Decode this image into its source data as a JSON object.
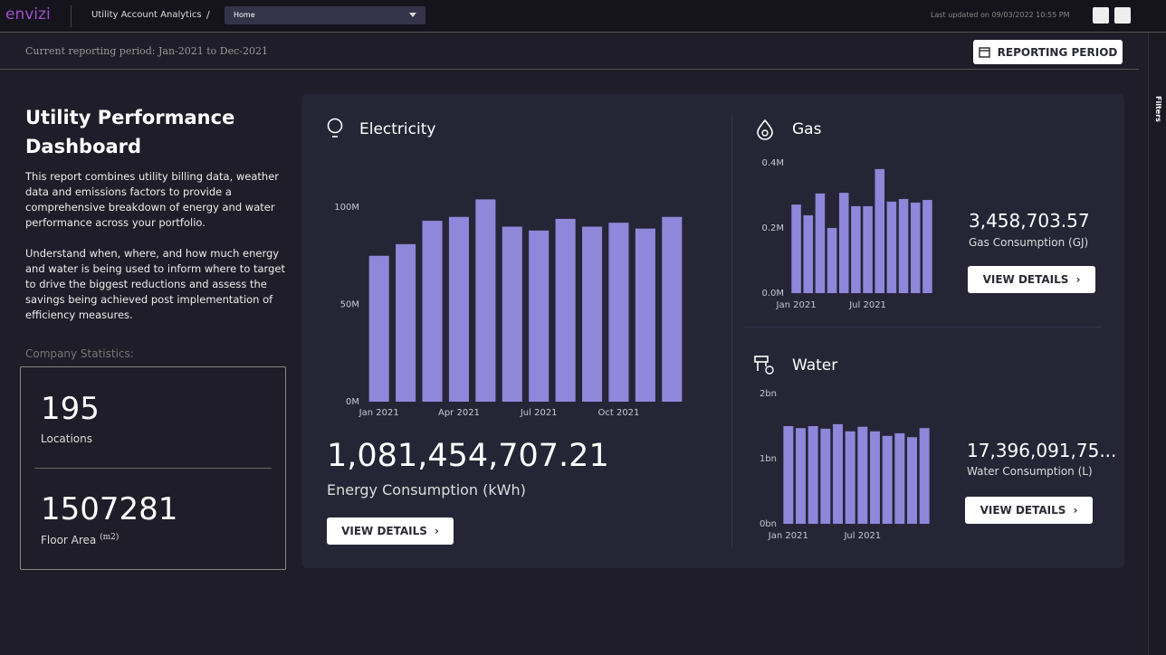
{
  "header": {
    "logo": "envizi",
    "breadcrumb": "Utility Account Analytics",
    "separator": "/",
    "dropdown": "Home",
    "last_updated": "Last updated on 09/03/2022 10:55 PM"
  },
  "toolbar": {
    "period": "Current reporting period: Jan-2021 to Dec-2021",
    "button": "REPORTING PERIOD"
  },
  "sidebar": {
    "label": "Filters"
  },
  "intro": {
    "title": "Utility Performance Dashboard",
    "paragraphs": [
      "This report combines utility billing data, weather data and emissions factors to provide a comprehensive breakdown of energy and water performance across your portfolio.",
      "Understand when, where, and how much energy and water is being used to inform where to target to drive the biggest reductions and assess the savings being achieved post implementation of efficiency measures."
    ],
    "stats_label": "Company Statistics:",
    "stats": [
      {
        "value": 195,
        "label": "Locations"
      },
      {
        "value": 1507281,
        "label": "Floor Area",
        "unit": "(m2)"
      }
    ]
  },
  "chart_data": [
    {
      "type": "bar",
      "title": "Electricity",
      "color": "#8f87da",
      "categories": [
        "Jan 2021",
        null,
        null,
        "Apr 2021",
        null,
        null,
        "Jul 2021",
        null,
        null,
        "Oct 2021",
        null,
        null
      ],
      "values": [
        75000000,
        81000000,
        93000000,
        95000000,
        104000000,
        90000000,
        88000000,
        94000000,
        90000000,
        92000000,
        89000000,
        95000000
      ],
      "ylim": [
        0,
        110000000
      ],
      "yticks": [
        {
          "value": 0,
          "label": "0M"
        },
        {
          "value": 50000000,
          "label": "50M"
        },
        {
          "value": 100000000,
          "label": "100M"
        }
      ],
      "kpi": "1,081,454,707.21",
      "kpi_label": "Energy Consumption (kWh)",
      "button": "VIEW DETAILS"
    },
    {
      "type": "bar",
      "title": "Gas",
      "color": "#8f87da",
      "categories": [
        "Jan 2021",
        null,
        null,
        null,
        null,
        null,
        "Jul 2021",
        null,
        null,
        null,
        null,
        null
      ],
      "values": [
        272000,
        239000,
        306000,
        200000,
        308000,
        267000,
        267000,
        381000,
        281000,
        289000,
        278000,
        286000
      ],
      "ylim": [
        0,
        400000
      ],
      "yticks": [
        {
          "value": 0,
          "label": "0.0M"
        },
        {
          "value": 200000,
          "label": "0.2M"
        },
        {
          "value": 400000,
          "label": "0.4M"
        }
      ],
      "kpi": "3,458,703.57",
      "kpi_label": "Gas Consumption (GJ)",
      "button": "VIEW DETAILS"
    },
    {
      "type": "bar",
      "title": "Water",
      "color": "#8f87da",
      "categories": [
        "Jan 2021",
        null,
        null,
        null,
        null,
        null,
        "Jul 2021",
        null,
        null,
        null,
        null,
        null
      ],
      "values": [
        1500000000,
        1470000000,
        1500000000,
        1460000000,
        1530000000,
        1420000000,
        1490000000,
        1420000000,
        1350000000,
        1390000000,
        1330000000,
        1470000000
      ],
      "ylim": [
        0,
        2000000000
      ],
      "yticks": [
        {
          "value": 0,
          "label": "0bn"
        },
        {
          "value": 1000000000,
          "label": "1bn"
        },
        {
          "value": 2000000000,
          "label": "2bn"
        }
      ],
      "kpi": "17,396,091,75...",
      "kpi_label": "Water Consumption (L)",
      "button": "VIEW DETAILS"
    }
  ]
}
